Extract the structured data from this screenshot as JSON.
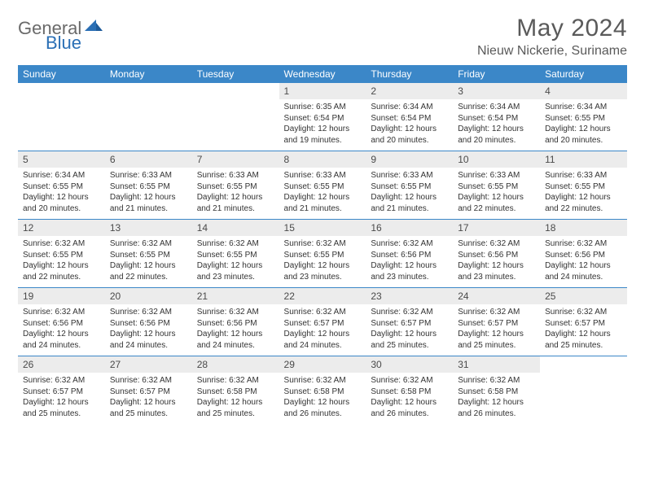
{
  "logo": {
    "gray": "General",
    "blue": "Blue"
  },
  "header": {
    "title": "May 2024",
    "subtitle": "Nieuw Nickerie, Suriname"
  },
  "dayNames": [
    "Sunday",
    "Monday",
    "Tuesday",
    "Wednesday",
    "Thursday",
    "Friday",
    "Saturday"
  ],
  "colors": {
    "headerBg": "#3b87c8",
    "dayBg": "#ececec",
    "borderTop": "#3b87c8",
    "titleColor": "#5a5a5a",
    "logoGray": "#6a6a6a",
    "logoBlue": "#2a6fb5"
  },
  "weeks": [
    {
      "nums": [
        "",
        "",
        "",
        "1",
        "2",
        "3",
        "4"
      ],
      "details": [
        [
          "",
          "",
          "",
          ""
        ],
        [
          "",
          "",
          "",
          ""
        ],
        [
          "",
          "",
          "",
          ""
        ],
        [
          "Sunrise: 6:35 AM",
          "Sunset: 6:54 PM",
          "Daylight: 12 hours",
          "and 19 minutes."
        ],
        [
          "Sunrise: 6:34 AM",
          "Sunset: 6:54 PM",
          "Daylight: 12 hours",
          "and 20 minutes."
        ],
        [
          "Sunrise: 6:34 AM",
          "Sunset: 6:54 PM",
          "Daylight: 12 hours",
          "and 20 minutes."
        ],
        [
          "Sunrise: 6:34 AM",
          "Sunset: 6:55 PM",
          "Daylight: 12 hours",
          "and 20 minutes."
        ]
      ]
    },
    {
      "nums": [
        "5",
        "6",
        "7",
        "8",
        "9",
        "10",
        "11"
      ],
      "details": [
        [
          "Sunrise: 6:34 AM",
          "Sunset: 6:55 PM",
          "Daylight: 12 hours",
          "and 20 minutes."
        ],
        [
          "Sunrise: 6:33 AM",
          "Sunset: 6:55 PM",
          "Daylight: 12 hours",
          "and 21 minutes."
        ],
        [
          "Sunrise: 6:33 AM",
          "Sunset: 6:55 PM",
          "Daylight: 12 hours",
          "and 21 minutes."
        ],
        [
          "Sunrise: 6:33 AM",
          "Sunset: 6:55 PM",
          "Daylight: 12 hours",
          "and 21 minutes."
        ],
        [
          "Sunrise: 6:33 AM",
          "Sunset: 6:55 PM",
          "Daylight: 12 hours",
          "and 21 minutes."
        ],
        [
          "Sunrise: 6:33 AM",
          "Sunset: 6:55 PM",
          "Daylight: 12 hours",
          "and 22 minutes."
        ],
        [
          "Sunrise: 6:33 AM",
          "Sunset: 6:55 PM",
          "Daylight: 12 hours",
          "and 22 minutes."
        ]
      ]
    },
    {
      "nums": [
        "12",
        "13",
        "14",
        "15",
        "16",
        "17",
        "18"
      ],
      "details": [
        [
          "Sunrise: 6:32 AM",
          "Sunset: 6:55 PM",
          "Daylight: 12 hours",
          "and 22 minutes."
        ],
        [
          "Sunrise: 6:32 AM",
          "Sunset: 6:55 PM",
          "Daylight: 12 hours",
          "and 22 minutes."
        ],
        [
          "Sunrise: 6:32 AM",
          "Sunset: 6:55 PM",
          "Daylight: 12 hours",
          "and 23 minutes."
        ],
        [
          "Sunrise: 6:32 AM",
          "Sunset: 6:55 PM",
          "Daylight: 12 hours",
          "and 23 minutes."
        ],
        [
          "Sunrise: 6:32 AM",
          "Sunset: 6:56 PM",
          "Daylight: 12 hours",
          "and 23 minutes."
        ],
        [
          "Sunrise: 6:32 AM",
          "Sunset: 6:56 PM",
          "Daylight: 12 hours",
          "and 23 minutes."
        ],
        [
          "Sunrise: 6:32 AM",
          "Sunset: 6:56 PM",
          "Daylight: 12 hours",
          "and 24 minutes."
        ]
      ]
    },
    {
      "nums": [
        "19",
        "20",
        "21",
        "22",
        "23",
        "24",
        "25"
      ],
      "details": [
        [
          "Sunrise: 6:32 AM",
          "Sunset: 6:56 PM",
          "Daylight: 12 hours",
          "and 24 minutes."
        ],
        [
          "Sunrise: 6:32 AM",
          "Sunset: 6:56 PM",
          "Daylight: 12 hours",
          "and 24 minutes."
        ],
        [
          "Sunrise: 6:32 AM",
          "Sunset: 6:56 PM",
          "Daylight: 12 hours",
          "and 24 minutes."
        ],
        [
          "Sunrise: 6:32 AM",
          "Sunset: 6:57 PM",
          "Daylight: 12 hours",
          "and 24 minutes."
        ],
        [
          "Sunrise: 6:32 AM",
          "Sunset: 6:57 PM",
          "Daylight: 12 hours",
          "and 25 minutes."
        ],
        [
          "Sunrise: 6:32 AM",
          "Sunset: 6:57 PM",
          "Daylight: 12 hours",
          "and 25 minutes."
        ],
        [
          "Sunrise: 6:32 AM",
          "Sunset: 6:57 PM",
          "Daylight: 12 hours",
          "and 25 minutes."
        ]
      ]
    },
    {
      "nums": [
        "26",
        "27",
        "28",
        "29",
        "30",
        "31",
        ""
      ],
      "details": [
        [
          "Sunrise: 6:32 AM",
          "Sunset: 6:57 PM",
          "Daylight: 12 hours",
          "and 25 minutes."
        ],
        [
          "Sunrise: 6:32 AM",
          "Sunset: 6:57 PM",
          "Daylight: 12 hours",
          "and 25 minutes."
        ],
        [
          "Sunrise: 6:32 AM",
          "Sunset: 6:58 PM",
          "Daylight: 12 hours",
          "and 25 minutes."
        ],
        [
          "Sunrise: 6:32 AM",
          "Sunset: 6:58 PM",
          "Daylight: 12 hours",
          "and 26 minutes."
        ],
        [
          "Sunrise: 6:32 AM",
          "Sunset: 6:58 PM",
          "Daylight: 12 hours",
          "and 26 minutes."
        ],
        [
          "Sunrise: 6:32 AM",
          "Sunset: 6:58 PM",
          "Daylight: 12 hours",
          "and 26 minutes."
        ],
        [
          "",
          "",
          "",
          ""
        ]
      ]
    }
  ]
}
